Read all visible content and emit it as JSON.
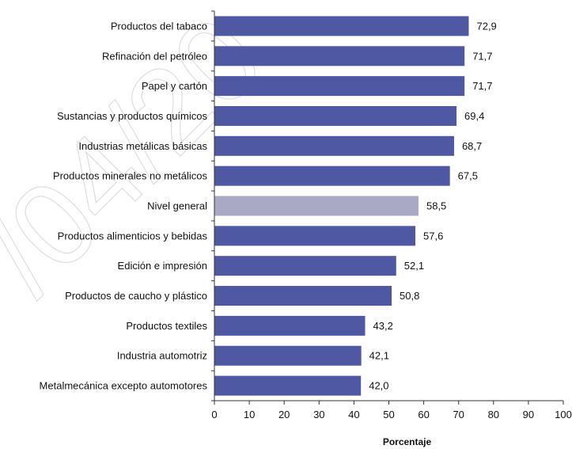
{
  "chart_data": {
    "type": "bar",
    "orientation": "horizontal",
    "categories": [
      "Productos del tabaco",
      "Refinación del petróleo",
      "Papel y cartón",
      "Sustancias y productos químicos",
      "Industrias metálicas básicas",
      "Productos minerales no metálicos",
      "Nivel general",
      "Productos alimenticios y bebidas",
      "Edición e impresión",
      "Productos de caucho y plástico",
      "Productos textiles",
      "Industria automotriz",
      "Metalmecánica excepto automotores"
    ],
    "values": [
      72.9,
      71.7,
      71.7,
      69.4,
      68.7,
      67.5,
      58.5,
      57.6,
      52.1,
      50.8,
      43.2,
      42.1,
      42.0
    ],
    "value_labels": [
      "72,9",
      "71,7",
      "71,7",
      "69,4",
      "68,7",
      "67,5",
      "58,5",
      "57,6",
      "52,1",
      "50,8",
      "43,2",
      "42,1",
      "42,0"
    ],
    "highlight_category": "Nivel general",
    "xlabel": "Porcentaje",
    "xlim": [
      0,
      100
    ],
    "xticks": [
      0,
      10,
      20,
      30,
      40,
      50,
      60,
      70,
      80,
      90,
      100
    ],
    "xtick_labels": [
      "0",
      "10",
      "20",
      "30",
      "40",
      "50",
      "60",
      "70",
      "80",
      "90",
      "100"
    ],
    "grid": false,
    "legend": "none",
    "colors": {
      "bar": "#4e58a3",
      "highlight": "#a9a9c6",
      "axis": "#333333"
    }
  },
  "watermark": {
    "text": "/04/20"
  }
}
